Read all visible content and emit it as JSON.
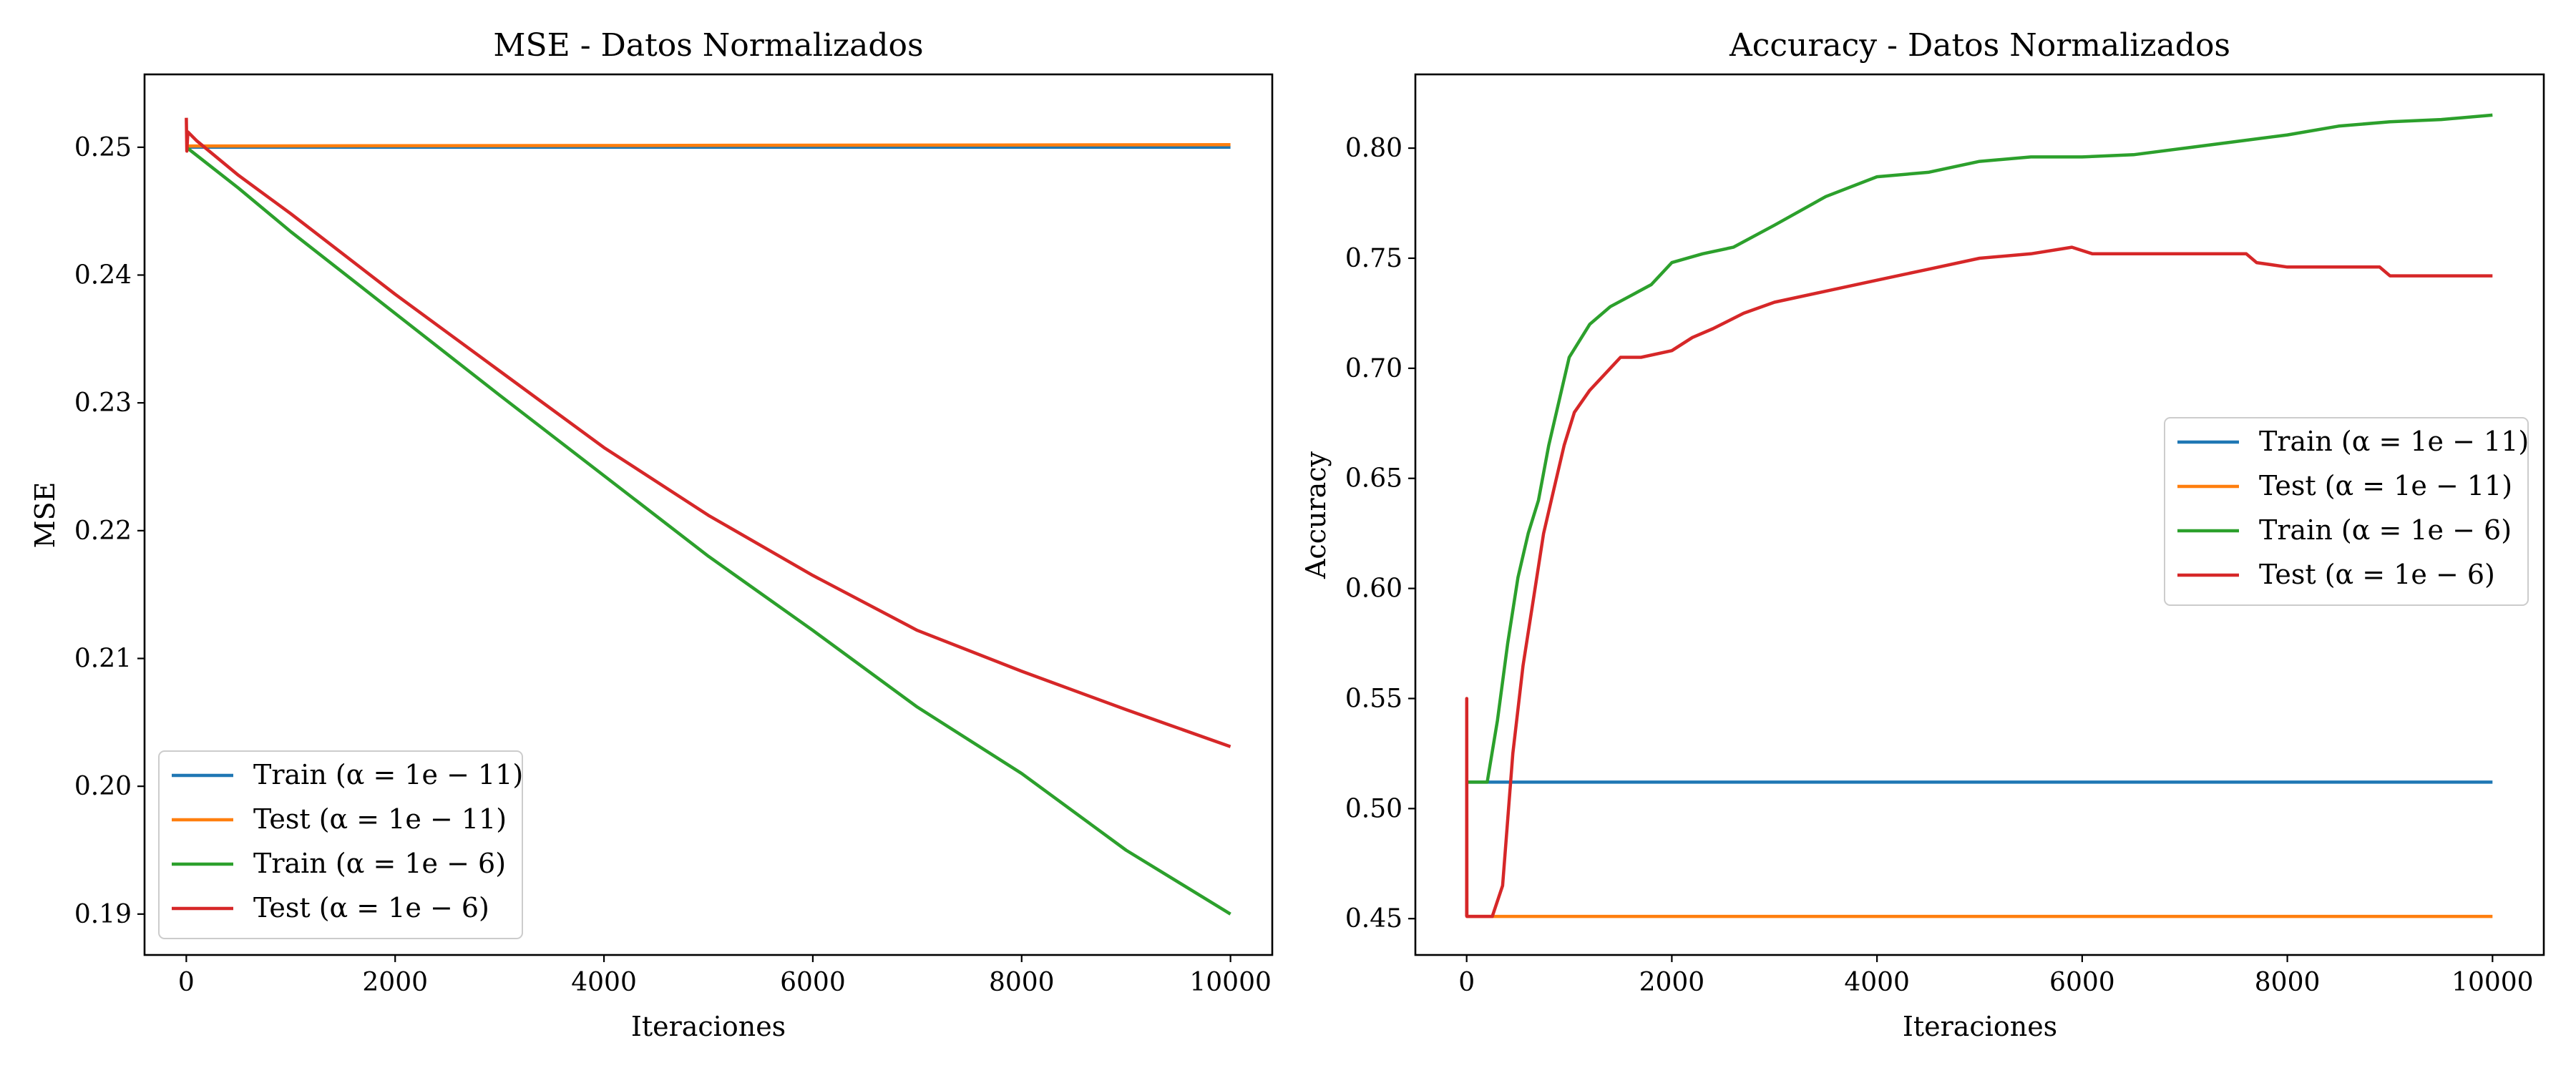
{
  "chart_data": [
    {
      "type": "line",
      "title": "MSE - Datos Normalizados",
      "xlabel": "Iteraciones",
      "ylabel": "MSE",
      "xlim": [
        -400,
        10400
      ],
      "ylim": [
        0.1868,
        0.2557
      ],
      "xticks": [
        0,
        2000,
        4000,
        6000,
        8000,
        10000
      ],
      "xtick_labels": [
        "0",
        "2000",
        "4000",
        "6000",
        "8000",
        "10000"
      ],
      "yticks": [
        0.19,
        0.2,
        0.21,
        0.22,
        0.23,
        0.24,
        0.25
      ],
      "ytick_labels": [
        "0.19",
        "0.20",
        "0.21",
        "0.22",
        "0.23",
        "0.24",
        "0.25"
      ],
      "grid": false,
      "legend_position": "lower-left",
      "series": [
        {
          "name": "Train (α = 1e − 11)",
          "color": "#1f77b4",
          "points": [
            [
              0,
              0.25
            ],
            [
              10000,
              0.25
            ]
          ]
        },
        {
          "name": "Test (α = 1e − 11)",
          "color": "#ff7f0e",
          "points": [
            [
              0,
              0.2501
            ],
            [
              10000,
              0.2502
            ]
          ]
        },
        {
          "name": "Train (α = 1e − 6)",
          "color": "#2ca02c",
          "points": [
            [
              0,
              0.25
            ],
            [
              500,
              0.2468
            ],
            [
              1000,
              0.2434
            ],
            [
              2000,
              0.237
            ],
            [
              3000,
              0.2306
            ],
            [
              4000,
              0.2243
            ],
            [
              5000,
              0.218
            ],
            [
              6000,
              0.2122
            ],
            [
              7000,
              0.2062
            ],
            [
              8000,
              0.201
            ],
            [
              9000,
              0.195
            ],
            [
              10000,
              0.19
            ]
          ]
        },
        {
          "name": "Test (α = 1e − 6)",
          "color": "#d62728",
          "points": [
            [
              0,
              0.2523
            ],
            [
              5,
              0.2497
            ],
            [
              15,
              0.2512
            ],
            [
              100,
              0.2505
            ],
            [
              500,
              0.2478
            ],
            [
              1000,
              0.2448
            ],
            [
              2000,
              0.2385
            ],
            [
              3000,
              0.2325
            ],
            [
              4000,
              0.2265
            ],
            [
              5000,
              0.2212
            ],
            [
              6000,
              0.2165
            ],
            [
              7000,
              0.2122
            ],
            [
              8000,
              0.209
            ],
            [
              9000,
              0.206
            ],
            [
              10000,
              0.2031
            ]
          ]
        }
      ]
    },
    {
      "type": "line",
      "title": "Accuracy - Datos Normalizados",
      "xlabel": "Iteraciones",
      "ylabel": "Accuracy",
      "xlim": [
        -500,
        10500
      ],
      "ylim": [
        0.4335,
        0.8335
      ],
      "xticks": [
        0,
        2000,
        4000,
        6000,
        8000,
        10000
      ],
      "xtick_labels": [
        "0",
        "2000",
        "4000",
        "6000",
        "8000",
        "10000"
      ],
      "yticks": [
        0.45,
        0.5,
        0.55,
        0.6,
        0.65,
        0.7,
        0.75,
        0.8
      ],
      "ytick_labels": [
        "0.45",
        "0.50",
        "0.55",
        "0.60",
        "0.65",
        "0.70",
        "0.75",
        "0.80"
      ],
      "grid": false,
      "legend_position": "center-right",
      "series": [
        {
          "name": "Train (α = 1e − 11)",
          "color": "#1f77b4",
          "points": [
            [
              0,
              0.512
            ],
            [
              10000,
              0.512
            ]
          ]
        },
        {
          "name": "Test (α = 1e − 11)",
          "color": "#ff7f0e",
          "points": [
            [
              0,
              0.451
            ],
            [
              10000,
              0.451
            ]
          ]
        },
        {
          "name": "Train (α = 1e − 6)",
          "color": "#2ca02c",
          "points": [
            [
              0,
              0.512
            ],
            [
              200,
              0.512
            ],
            [
              300,
              0.54
            ],
            [
              400,
              0.575
            ],
            [
              500,
              0.605
            ],
            [
              600,
              0.625
            ],
            [
              700,
              0.64
            ],
            [
              800,
              0.665
            ],
            [
              900,
              0.685
            ],
            [
              1000,
              0.705
            ],
            [
              1200,
              0.72
            ],
            [
              1400,
              0.728
            ],
            [
              1600,
              0.733
            ],
            [
              1800,
              0.738
            ],
            [
              2000,
              0.748
            ],
            [
              2300,
              0.752
            ],
            [
              2600,
              0.755
            ],
            [
              3000,
              0.765
            ],
            [
              3500,
              0.778
            ],
            [
              4000,
              0.787
            ],
            [
              4500,
              0.789
            ],
            [
              5000,
              0.794
            ],
            [
              5500,
              0.796
            ],
            [
              6000,
              0.796
            ],
            [
              6500,
              0.797
            ],
            [
              7000,
              0.8
            ],
            [
              7500,
              0.803
            ],
            [
              8000,
              0.806
            ],
            [
              8500,
              0.81
            ],
            [
              9000,
              0.812
            ],
            [
              9500,
              0.813
            ],
            [
              10000,
              0.815
            ]
          ]
        },
        {
          "name": "Test (α = 1e − 6)",
          "color": "#d62728",
          "points": [
            [
              0,
              0.451
            ],
            [
              1,
              0.55
            ],
            [
              2,
              0.451
            ],
            [
              250,
              0.451
            ],
            [
              350,
              0.465
            ],
            [
              450,
              0.525
            ],
            [
              550,
              0.565
            ],
            [
              650,
              0.595
            ],
            [
              750,
              0.625
            ],
            [
              850,
              0.645
            ],
            [
              950,
              0.665
            ],
            [
              1050,
              0.68
            ],
            [
              1200,
              0.69
            ],
            [
              1300,
              0.695
            ],
            [
              1500,
              0.705
            ],
            [
              1700,
              0.705
            ],
            [
              2000,
              0.708
            ],
            [
              2200,
              0.714
            ],
            [
              2400,
              0.718
            ],
            [
              2700,
              0.725
            ],
            [
              3000,
              0.73
            ],
            [
              3500,
              0.735
            ],
            [
              4000,
              0.74
            ],
            [
              4500,
              0.745
            ],
            [
              5000,
              0.75
            ],
            [
              5500,
              0.752
            ],
            [
              5900,
              0.755
            ],
            [
              6100,
              0.752
            ],
            [
              7000,
              0.752
            ],
            [
              7600,
              0.752
            ],
            [
              7700,
              0.748
            ],
            [
              8000,
              0.746
            ],
            [
              8900,
              0.746
            ],
            [
              9000,
              0.742
            ],
            [
              10000,
              0.742
            ]
          ]
        }
      ]
    }
  ]
}
